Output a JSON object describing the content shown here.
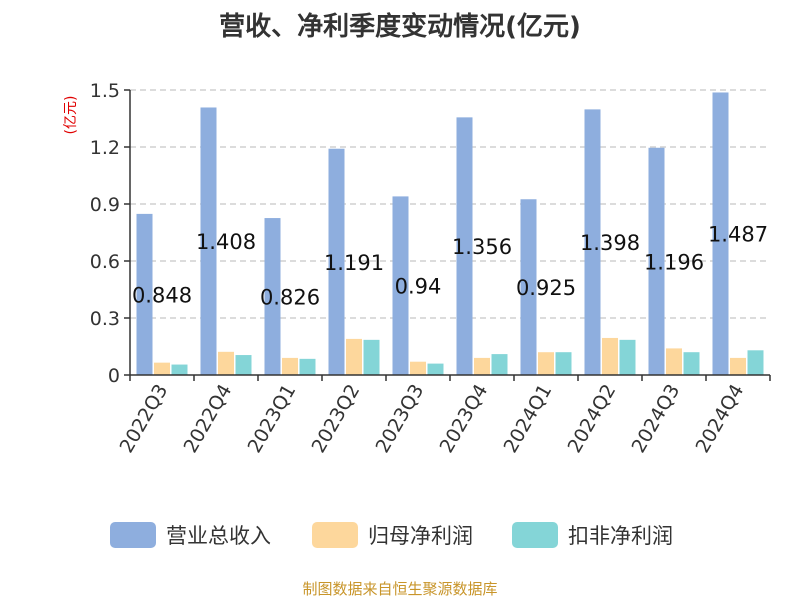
{
  "chart_data": {
    "type": "bar",
    "title": "营收、净利季度变动情况(亿元)",
    "ylabel": "(亿元)",
    "xlabel": "",
    "ylim": [
      0,
      1.5
    ],
    "yticks": [
      "0",
      "0.3",
      "0.6",
      "0.9",
      "1.2",
      "1.5"
    ],
    "grid": true,
    "legend_position": "bottom",
    "categories": [
      "2022Q3",
      "2022Q4",
      "2023Q1",
      "2023Q2",
      "2023Q3",
      "2023Q4",
      "2024Q1",
      "2024Q2",
      "2024Q3",
      "2024Q4"
    ],
    "series": [
      {
        "name": "营业总收入",
        "color": "#8eaede",
        "values": [
          0.848,
          1.408,
          0.826,
          1.191,
          0.94,
          1.356,
          0.925,
          1.398,
          1.196,
          1.487
        ],
        "labels": [
          "0.848",
          "1.408",
          "0.826",
          "1.191",
          "0.94",
          "1.356",
          "0.925",
          "1.398",
          "1.196",
          "1.487"
        ]
      },
      {
        "name": "归母净利润",
        "color": "#fdd79c",
        "values": [
          0.065,
          0.122,
          0.09,
          0.19,
          0.07,
          0.09,
          0.12,
          0.195,
          0.14,
          0.09
        ]
      },
      {
        "name": "扣非净利润",
        "color": "#84d5d7",
        "values": [
          0.055,
          0.105,
          0.085,
          0.185,
          0.06,
          0.11,
          0.12,
          0.185,
          0.12,
          0.13
        ]
      }
    ],
    "source": "制图数据来自恒生聚源数据库"
  }
}
